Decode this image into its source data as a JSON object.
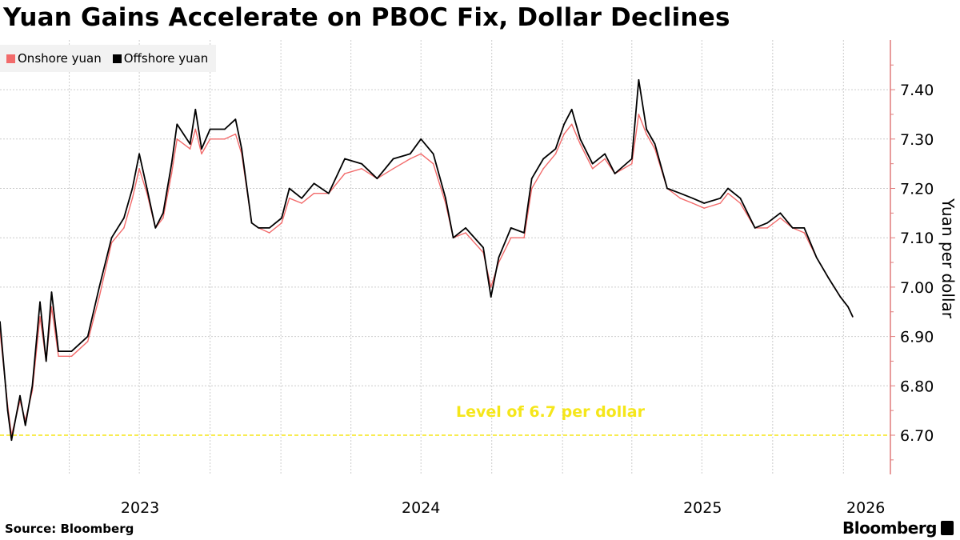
{
  "title": "Yuan Gains Accelerate on PBOC Fix, Dollar Declines",
  "source": "Source: Bloomberg",
  "logo": "Bloomberg",
  "chart_data": {
    "type": "line",
    "title": "Yuan Gains Accelerate on PBOC Fix, Dollar Declines",
    "ylabel": "Yuan per dollar",
    "xlabel": "",
    "ylim": [
      6.62,
      7.5
    ],
    "xlim": [
      "2023-01-01",
      "2026-03-03"
    ],
    "yticks": [
      "6.70",
      "6.80",
      "6.90",
      "7.00",
      "7.10",
      "7.20",
      "7.30",
      "7.40"
    ],
    "xticks": [
      {
        "label": "2023",
        "date": "2023-07-02"
      },
      {
        "label": "2024",
        "date": "2024-07-01"
      },
      {
        "label": "2025",
        "date": "2025-07-02"
      },
      {
        "label": "2026",
        "date": "2026-01-30"
      }
    ],
    "grid": true,
    "legend_position": "top-left",
    "y_axis_side": "right",
    "colors": {
      "onshore": "#f26b6b",
      "offshore": "#000000",
      "axis": "#e07b7b",
      "reference": "#f5e61a",
      "grid": "#cccccc"
    },
    "reference_line": {
      "value": 6.7,
      "label": "Level of 6.7 per dollar"
    },
    "dates": [
      "2023-01-01",
      "2023-01-11",
      "2023-01-16",
      "2023-01-27",
      "2023-02-03",
      "2023-02-12",
      "2023-02-22",
      "2023-03-02",
      "2023-03-09",
      "2023-03-18",
      "2023-04-04",
      "2023-04-25",
      "2023-05-10",
      "2023-05-26",
      "2023-06-11",
      "2023-06-22",
      "2023-07-01",
      "2023-07-11",
      "2023-07-22",
      "2023-08-01",
      "2023-08-12",
      "2023-08-19",
      "2023-09-05",
      "2023-09-12",
      "2023-09-20",
      "2023-10-01",
      "2023-10-20",
      "2023-11-03",
      "2023-11-11",
      "2023-11-24",
      "2023-12-03",
      "2023-12-17",
      "2024-01-02",
      "2024-01-12",
      "2024-01-28",
      "2024-02-13",
      "2024-03-03",
      "2024-03-24",
      "2024-04-15",
      "2024-05-05",
      "2024-05-26",
      "2024-06-17",
      "2024-07-01",
      "2024-07-17",
      "2024-08-02",
      "2024-08-12",
      "2024-08-28",
      "2024-09-20",
      "2024-09-30",
      "2024-10-10",
      "2024-10-26",
      "2024-11-12",
      "2024-11-22",
      "2024-12-07",
      "2024-12-23",
      "2025-01-03",
      "2025-01-13",
      "2025-01-24",
      "2025-02-09",
      "2025-02-25",
      "2025-03-10",
      "2025-04-01",
      "2025-04-10",
      "2025-04-20",
      "2025-05-01",
      "2025-05-17",
      "2025-06-03",
      "2025-06-19",
      "2025-07-04",
      "2025-07-25",
      "2025-08-04",
      "2025-08-20",
      "2025-09-08",
      "2025-09-24",
      "2025-10-11",
      "2025-10-27",
      "2025-11-11",
      "2025-11-27",
      "2025-12-12",
      "2025-12-28",
      "2026-01-07",
      "2026-01-13"
    ],
    "series": [
      {
        "name": "Onshore yuan",
        "values": [
          6.91,
          6.76,
          6.7,
          6.77,
          6.73,
          6.79,
          6.94,
          6.85,
          6.96,
          6.86,
          6.86,
          6.89,
          6.98,
          7.09,
          7.12,
          7.18,
          7.24,
          7.19,
          7.12,
          7.14,
          7.23,
          7.3,
          7.28,
          7.32,
          7.27,
          7.3,
          7.3,
          7.31,
          7.27,
          7.13,
          7.12,
          7.11,
          7.13,
          7.18,
          7.17,
          7.19,
          7.19,
          7.23,
          7.24,
          7.22,
          7.24,
          7.26,
          7.27,
          7.25,
          7.17,
          7.1,
          7.11,
          7.07,
          7.0,
          7.05,
          7.1,
          7.1,
          7.2,
          7.24,
          7.27,
          7.31,
          7.33,
          7.29,
          7.24,
          7.26,
          7.23,
          7.25,
          7.35,
          7.31,
          7.28,
          7.2,
          7.18,
          7.17,
          7.16,
          7.17,
          7.19,
          7.17,
          7.12,
          7.12,
          7.14,
          7.12,
          7.11,
          7.06,
          7.02,
          6.98,
          6.96,
          6.94
        ]
      },
      {
        "name": "Offshore yuan",
        "values": [
          6.93,
          6.75,
          6.69,
          6.78,
          6.72,
          6.8,
          6.97,
          6.85,
          6.99,
          6.87,
          6.87,
          6.9,
          7.0,
          7.1,
          7.14,
          7.2,
          7.27,
          7.2,
          7.12,
          7.15,
          7.25,
          7.33,
          7.29,
          7.36,
          7.28,
          7.32,
          7.32,
          7.34,
          7.28,
          7.13,
          7.12,
          7.12,
          7.14,
          7.2,
          7.18,
          7.21,
          7.19,
          7.26,
          7.25,
          7.22,
          7.26,
          7.27,
          7.3,
          7.27,
          7.18,
          7.1,
          7.12,
          7.08,
          6.98,
          7.06,
          7.12,
          7.11,
          7.22,
          7.26,
          7.28,
          7.33,
          7.36,
          7.3,
          7.25,
          7.27,
          7.23,
          7.26,
          7.42,
          7.32,
          7.29,
          7.2,
          7.19,
          7.18,
          7.17,
          7.18,
          7.2,
          7.18,
          7.12,
          7.13,
          7.15,
          7.12,
          7.12,
          7.06,
          7.02,
          6.98,
          6.96,
          6.94
        ]
      }
    ]
  }
}
